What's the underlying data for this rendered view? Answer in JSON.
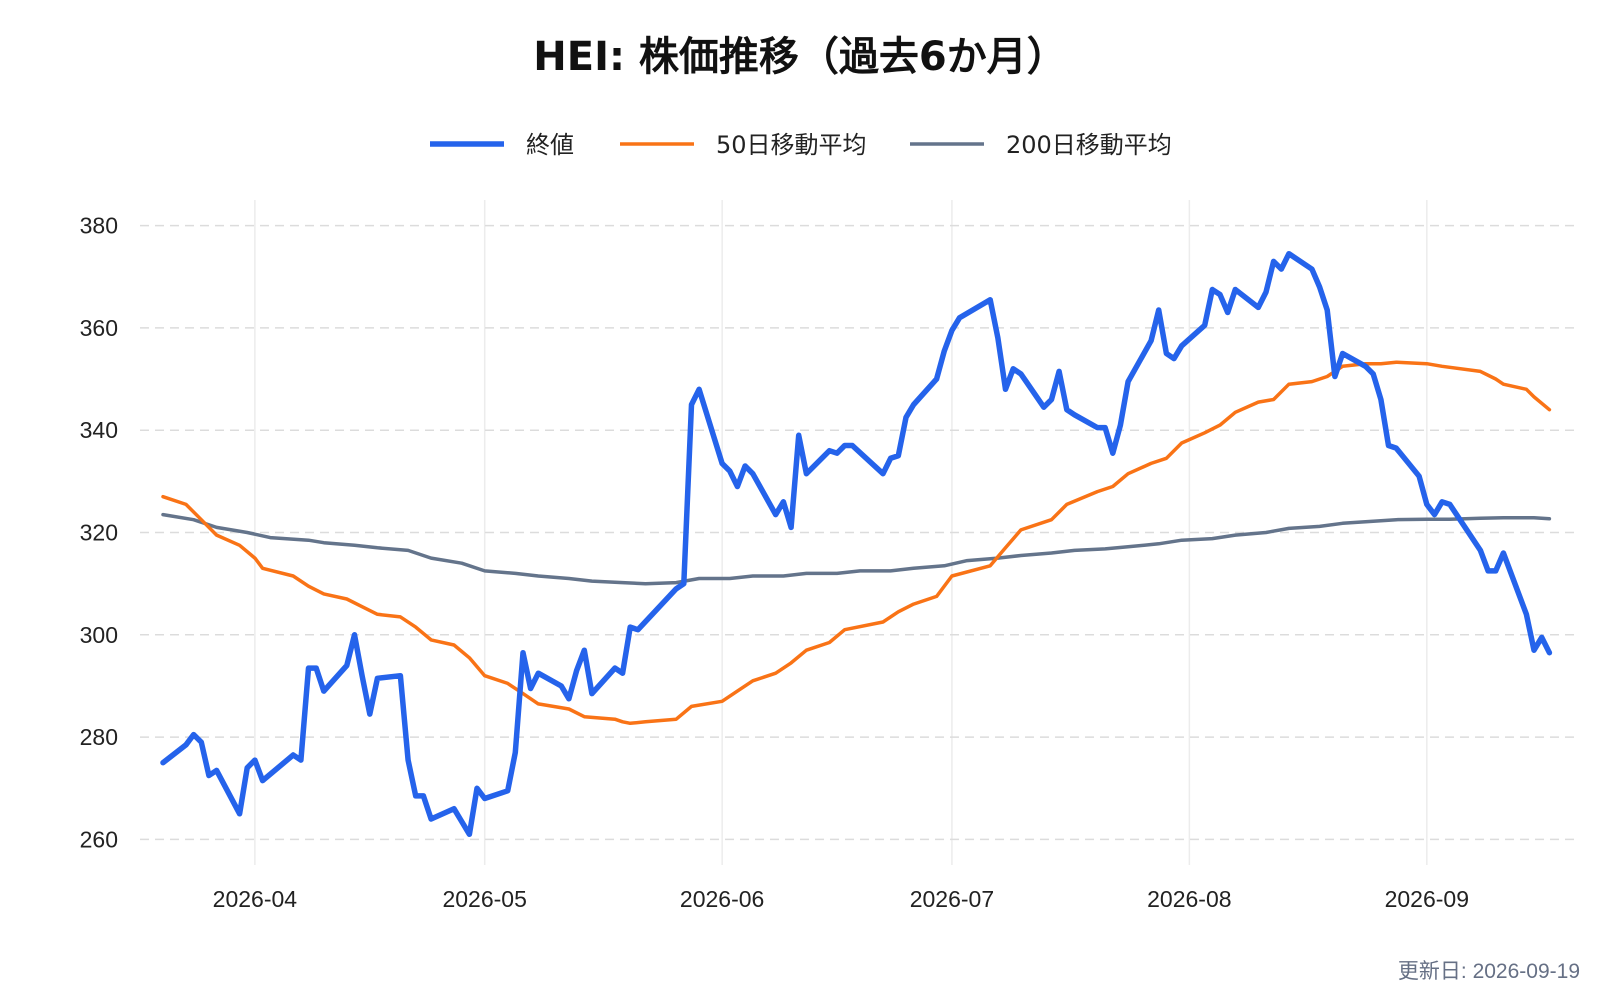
{
  "chart_data": {
    "type": "line",
    "title": "HEI: 株価推移（過去6か月）",
    "xlabel": "",
    "ylabel": "",
    "x_range": [
      "2026-03-20",
      "2026-09-18"
    ],
    "ylim": [
      255,
      385
    ],
    "y_ticks": [
      260,
      280,
      300,
      320,
      340,
      360,
      380
    ],
    "x_ticks": [
      "2026-04-01",
      "2026-05-01",
      "2026-06-01",
      "2026-07-01",
      "2026-08-01",
      "2026-09-01"
    ],
    "x_tick_labels": [
      "2026-04",
      "2026-05",
      "2026-06",
      "2026-07",
      "2026-08",
      "2026-09"
    ],
    "grid": true,
    "legend_position": "top-center",
    "series": [
      {
        "name": "終値",
        "color": "#2563eb",
        "points": [
          [
            "2026-03-20",
            275.0
          ],
          [
            "2026-03-23",
            278.5
          ],
          [
            "2026-03-24",
            280.5
          ],
          [
            "2026-03-25",
            279.0
          ],
          [
            "2026-03-26",
            272.5
          ],
          [
            "2026-03-27",
            273.5
          ],
          [
            "2026-03-30",
            265.0
          ],
          [
            "2026-03-31",
            274.0
          ],
          [
            "2026-04-01",
            275.5
          ],
          [
            "2026-04-02",
            271.5
          ],
          [
            "2026-04-06",
            276.5
          ],
          [
            "2026-04-07",
            275.5
          ],
          [
            "2026-04-08",
            293.5
          ],
          [
            "2026-04-09",
            293.5
          ],
          [
            "2026-04-10",
            289.0
          ],
          [
            "2026-04-13",
            294.0
          ],
          [
            "2026-04-14",
            300.0
          ],
          [
            "2026-04-15",
            292.0
          ],
          [
            "2026-04-16",
            284.5
          ],
          [
            "2026-04-17",
            291.5
          ],
          [
            "2026-04-20",
            292.0
          ],
          [
            "2026-04-21",
            275.5
          ],
          [
            "2026-04-22",
            268.5
          ],
          [
            "2026-04-23",
            268.5
          ],
          [
            "2026-04-24",
            264.0
          ],
          [
            "2026-04-27",
            266.0
          ],
          [
            "2026-04-28",
            263.5
          ],
          [
            "2026-04-29",
            261.0
          ],
          [
            "2026-04-30",
            270.0
          ],
          [
            "2026-05-01",
            268.0
          ],
          [
            "2026-05-04",
            269.5
          ],
          [
            "2026-05-05",
            277.0
          ],
          [
            "2026-05-06",
            296.5
          ],
          [
            "2026-05-07",
            289.5
          ],
          [
            "2026-05-08",
            292.5
          ],
          [
            "2026-05-11",
            290.0
          ],
          [
            "2026-05-12",
            287.5
          ],
          [
            "2026-05-13",
            293.0
          ],
          [
            "2026-05-14",
            297.0
          ],
          [
            "2026-05-15",
            288.5
          ],
          [
            "2026-05-18",
            293.5
          ],
          [
            "2026-05-19",
            292.5
          ],
          [
            "2026-05-20",
            301.5
          ],
          [
            "2026-05-21",
            301.0
          ],
          [
            "2026-05-26",
            309.0
          ],
          [
            "2026-05-27",
            310.0
          ],
          [
            "2026-05-28",
            345.0
          ],
          [
            "2026-05-29",
            348.0
          ],
          [
            "2026-06-01",
            333.5
          ],
          [
            "2026-06-02",
            332.0
          ],
          [
            "2026-06-03",
            329.0
          ],
          [
            "2026-06-04",
            333.0
          ],
          [
            "2026-06-05",
            331.5
          ],
          [
            "2026-06-08",
            323.5
          ],
          [
            "2026-06-09",
            326.0
          ],
          [
            "2026-06-10",
            321.0
          ],
          [
            "2026-06-11",
            339.0
          ],
          [
            "2026-06-12",
            331.5
          ],
          [
            "2026-06-15",
            336.0
          ],
          [
            "2026-06-16",
            335.5
          ],
          [
            "2026-06-17",
            337.0
          ],
          [
            "2026-06-18",
            337.0
          ],
          [
            "2026-06-22",
            331.5
          ],
          [
            "2026-06-23",
            334.5
          ],
          [
            "2026-06-24",
            335.0
          ],
          [
            "2026-06-25",
            342.5
          ],
          [
            "2026-06-26",
            345.0
          ],
          [
            "2026-06-29",
            350.0
          ],
          [
            "2026-06-30",
            355.5
          ],
          [
            "2026-07-01",
            359.5
          ],
          [
            "2026-07-02",
            362.0
          ],
          [
            "2026-07-06",
            365.5
          ],
          [
            "2026-07-07",
            358.0
          ],
          [
            "2026-07-08",
            348.0
          ],
          [
            "2026-07-09",
            352.0
          ],
          [
            "2026-07-10",
            351.0
          ],
          [
            "2026-07-13",
            344.5
          ],
          [
            "2026-07-14",
            346.0
          ],
          [
            "2026-07-15",
            351.5
          ],
          [
            "2026-07-16",
            344.0
          ],
          [
            "2026-07-17",
            343.0
          ],
          [
            "2026-07-20",
            340.5
          ],
          [
            "2026-07-21",
            340.5
          ],
          [
            "2026-07-22",
            335.5
          ],
          [
            "2026-07-23",
            341.0
          ],
          [
            "2026-07-24",
            349.5
          ],
          [
            "2026-07-27",
            357.5
          ],
          [
            "2026-07-28",
            363.5
          ],
          [
            "2026-07-29",
            355.0
          ],
          [
            "2026-07-30",
            354.0
          ],
          [
            "2026-07-31",
            356.5
          ],
          [
            "2026-08-03",
            360.5
          ],
          [
            "2026-08-04",
            367.5
          ],
          [
            "2026-08-05",
            366.5
          ],
          [
            "2026-08-06",
            363.0
          ],
          [
            "2026-08-07",
            367.5
          ],
          [
            "2026-08-10",
            364.0
          ],
          [
            "2026-08-11",
            367.0
          ],
          [
            "2026-08-12",
            373.0
          ],
          [
            "2026-08-13",
            371.5
          ],
          [
            "2026-08-14",
            374.5
          ],
          [
            "2026-08-17",
            371.5
          ],
          [
            "2026-08-18",
            368.0
          ],
          [
            "2026-08-19",
            363.5
          ],
          [
            "2026-08-20",
            350.5
          ],
          [
            "2026-08-21",
            355.0
          ],
          [
            "2026-08-24",
            352.5
          ],
          [
            "2026-08-25",
            351.0
          ],
          [
            "2026-08-26",
            346.0
          ],
          [
            "2026-08-27",
            337.0
          ],
          [
            "2026-08-28",
            336.5
          ],
          [
            "2026-08-31",
            331.0
          ],
          [
            "2026-09-01",
            325.5
          ],
          [
            "2026-09-02",
            323.5
          ],
          [
            "2026-09-03",
            326.0
          ],
          [
            "2026-09-04",
            325.5
          ],
          [
            "2026-09-08",
            316.5
          ],
          [
            "2026-09-09",
            312.5
          ],
          [
            "2026-09-10",
            312.5
          ],
          [
            "2026-09-11",
            316.0
          ],
          [
            "2026-09-14",
            304.0
          ],
          [
            "2026-09-15",
            297.0
          ],
          [
            "2026-09-16",
            299.5
          ],
          [
            "2026-09-17",
            296.5
          ]
        ]
      },
      {
        "name": "50日移動平均",
        "color": "#f97316",
        "points": [
          [
            "2026-03-20",
            327.0
          ],
          [
            "2026-03-23",
            325.5
          ],
          [
            "2026-03-25",
            322.5
          ],
          [
            "2026-03-27",
            319.5
          ],
          [
            "2026-03-30",
            317.5
          ],
          [
            "2026-04-01",
            315.0
          ],
          [
            "2026-04-02",
            313.0
          ],
          [
            "2026-04-06",
            311.5
          ],
          [
            "2026-04-08",
            309.5
          ],
          [
            "2026-04-10",
            308.0
          ],
          [
            "2026-04-13",
            307.0
          ],
          [
            "2026-04-15",
            305.5
          ],
          [
            "2026-04-17",
            304.0
          ],
          [
            "2026-04-20",
            303.5
          ],
          [
            "2026-04-22",
            301.5
          ],
          [
            "2026-04-24",
            299.0
          ],
          [
            "2026-04-27",
            298.0
          ],
          [
            "2026-04-29",
            295.5
          ],
          [
            "2026-05-01",
            292.0
          ],
          [
            "2026-05-04",
            290.5
          ],
          [
            "2026-05-06",
            288.5
          ],
          [
            "2026-05-08",
            286.5
          ],
          [
            "2026-05-12",
            285.5
          ],
          [
            "2026-05-14",
            284.0
          ],
          [
            "2026-05-18",
            283.5
          ],
          [
            "2026-05-19",
            283.0
          ],
          [
            "2026-05-20",
            282.7
          ],
          [
            "2026-05-22",
            283.0
          ],
          [
            "2026-05-26",
            283.5
          ],
          [
            "2026-05-28",
            286.0
          ],
          [
            "2026-06-01",
            287.0
          ],
          [
            "2026-06-03",
            289.0
          ],
          [
            "2026-06-05",
            291.0
          ],
          [
            "2026-06-08",
            292.5
          ],
          [
            "2026-06-10",
            294.5
          ],
          [
            "2026-06-12",
            297.0
          ],
          [
            "2026-06-15",
            298.5
          ],
          [
            "2026-06-17",
            301.0
          ],
          [
            "2026-06-22",
            302.5
          ],
          [
            "2026-06-24",
            304.5
          ],
          [
            "2026-06-26",
            306.0
          ],
          [
            "2026-06-29",
            307.5
          ],
          [
            "2026-07-01",
            311.5
          ],
          [
            "2026-07-06",
            313.5
          ],
          [
            "2026-07-08",
            317.0
          ],
          [
            "2026-07-10",
            320.5
          ],
          [
            "2026-07-14",
            322.5
          ],
          [
            "2026-07-16",
            325.5
          ],
          [
            "2026-07-20",
            328.0
          ],
          [
            "2026-07-22",
            329.0
          ],
          [
            "2026-07-24",
            331.5
          ],
          [
            "2026-07-27",
            333.5
          ],
          [
            "2026-07-29",
            334.5
          ],
          [
            "2026-07-31",
            337.5
          ],
          [
            "2026-08-03",
            339.5
          ],
          [
            "2026-08-05",
            341.0
          ],
          [
            "2026-08-07",
            343.5
          ],
          [
            "2026-08-10",
            345.5
          ],
          [
            "2026-08-12",
            346.0
          ],
          [
            "2026-08-14",
            349.0
          ],
          [
            "2026-08-17",
            349.5
          ],
          [
            "2026-08-19",
            350.5
          ],
          [
            "2026-08-21",
            352.5
          ],
          [
            "2026-08-24",
            353.0
          ],
          [
            "2026-08-26",
            353.0
          ],
          [
            "2026-08-28",
            353.3
          ],
          [
            "2026-09-01",
            353.0
          ],
          [
            "2026-09-03",
            352.5
          ],
          [
            "2026-09-08",
            351.5
          ],
          [
            "2026-09-10",
            350.0
          ],
          [
            "2026-09-11",
            349.0
          ],
          [
            "2026-09-14",
            348.0
          ],
          [
            "2026-09-15",
            346.5
          ],
          [
            "2026-09-17",
            344.0
          ]
        ]
      },
      {
        "name": "200日移動平均",
        "color": "#64748b",
        "points": [
          [
            "2026-03-20",
            323.5
          ],
          [
            "2026-03-24",
            322.5
          ],
          [
            "2026-03-27",
            321.0
          ],
          [
            "2026-03-31",
            320.0
          ],
          [
            "2026-04-03",
            319.0
          ],
          [
            "2026-04-08",
            318.5
          ],
          [
            "2026-04-10",
            318.0
          ],
          [
            "2026-04-14",
            317.5
          ],
          [
            "2026-04-17",
            317.0
          ],
          [
            "2026-04-21",
            316.5
          ],
          [
            "2026-04-24",
            315.0
          ],
          [
            "2026-04-28",
            314.0
          ],
          [
            "2026-05-01",
            312.5
          ],
          [
            "2026-05-05",
            312.0
          ],
          [
            "2026-05-08",
            311.5
          ],
          [
            "2026-05-12",
            311.0
          ],
          [
            "2026-05-15",
            310.5
          ],
          [
            "2026-05-19",
            310.2
          ],
          [
            "2026-05-22",
            310.0
          ],
          [
            "2026-05-26",
            310.2
          ],
          [
            "2026-05-29",
            311.0
          ],
          [
            "2026-06-02",
            311.0
          ],
          [
            "2026-06-05",
            311.5
          ],
          [
            "2026-06-09",
            311.5
          ],
          [
            "2026-06-12",
            312.0
          ],
          [
            "2026-06-16",
            312.0
          ],
          [
            "2026-06-19",
            312.5
          ],
          [
            "2026-06-23",
            312.5
          ],
          [
            "2026-06-26",
            313.0
          ],
          [
            "2026-06-30",
            313.5
          ],
          [
            "2026-07-03",
            314.5
          ],
          [
            "2026-07-07",
            315.0
          ],
          [
            "2026-07-10",
            315.5
          ],
          [
            "2026-07-14",
            316.0
          ],
          [
            "2026-07-17",
            316.5
          ],
          [
            "2026-07-21",
            316.8
          ],
          [
            "2026-07-24",
            317.2
          ],
          [
            "2026-07-28",
            317.8
          ],
          [
            "2026-07-31",
            318.5
          ],
          [
            "2026-08-04",
            318.8
          ],
          [
            "2026-08-07",
            319.5
          ],
          [
            "2026-08-11",
            320.0
          ],
          [
            "2026-08-14",
            320.8
          ],
          [
            "2026-08-18",
            321.2
          ],
          [
            "2026-08-21",
            321.8
          ],
          [
            "2026-08-25",
            322.2
          ],
          [
            "2026-08-28",
            322.5
          ],
          [
            "2026-09-01",
            322.6
          ],
          [
            "2026-09-04",
            322.6
          ],
          [
            "2026-09-08",
            322.8
          ],
          [
            "2026-09-11",
            322.9
          ],
          [
            "2026-09-15",
            322.9
          ],
          [
            "2026-09-17",
            322.7
          ]
        ]
      }
    ],
    "footer": "更新日: 2026-09-19"
  }
}
